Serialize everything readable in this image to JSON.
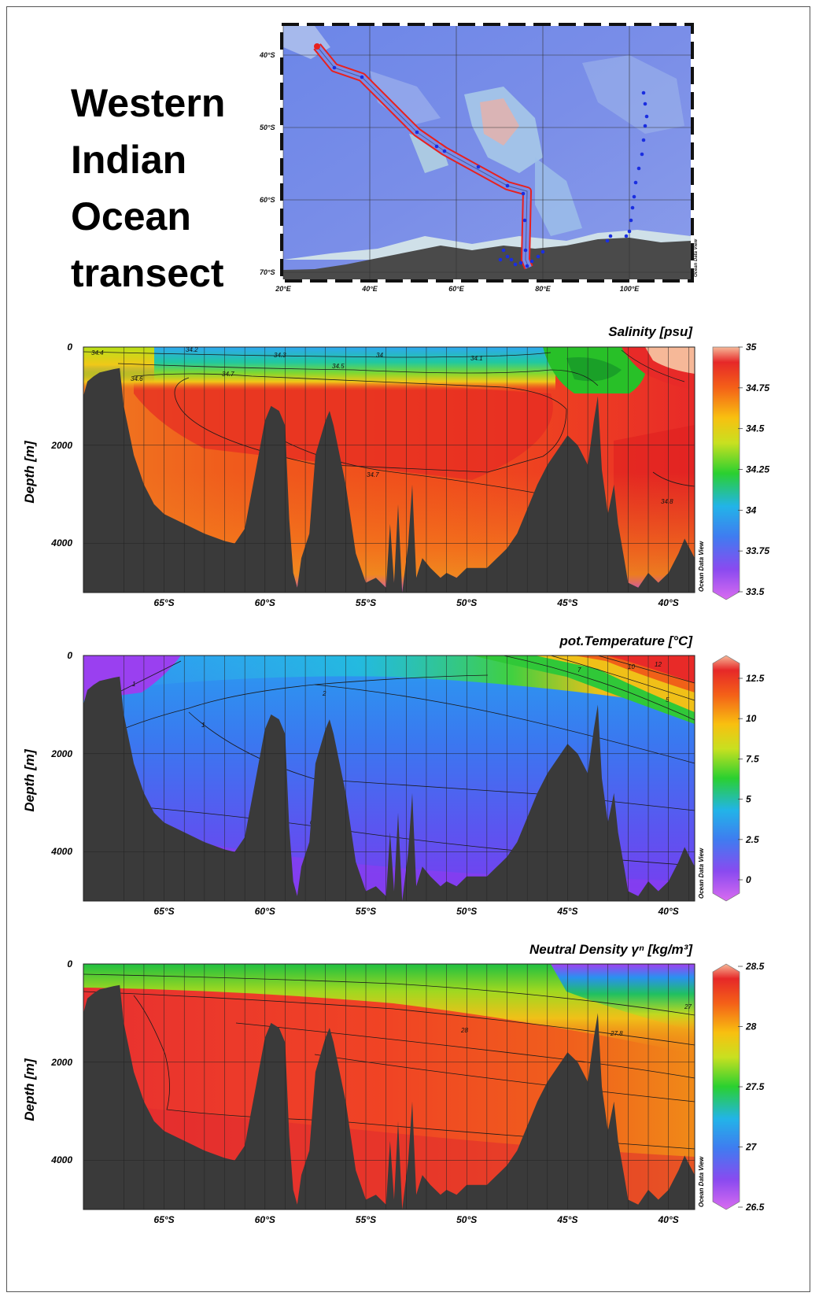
{
  "page_title_lines": [
    "Western",
    "Indian",
    "Ocean",
    "transect"
  ],
  "map": {
    "lat_labels": [
      "40°S",
      "50°S",
      "60°S",
      "70°S"
    ],
    "lon_labels": [
      "20°E",
      "40°E",
      "60°E",
      "80°E",
      "100°E"
    ],
    "watermark": "Ocean Data View",
    "route_color": "#e8201e",
    "station_color": "#1a2ee0"
  },
  "sections": [
    {
      "id": "salinity",
      "title": "Salinity [psu]",
      "colormap": "odv",
      "colorbar_ticks": [
        "35",
        "34.75",
        "34.5",
        "34.25",
        "34",
        "33.75",
        "33.5"
      ],
      "ylabel": "Depth [m]",
      "yticks": [
        "0",
        "2000",
        "4000"
      ],
      "xticks": [
        "65°S",
        "60°S",
        "55°S",
        "50°S",
        "45°S",
        "40°S"
      ],
      "contour_labels": [
        "34.4",
        "34.2",
        "34.3",
        "34",
        "34.1",
        "34.5",
        "34.7",
        "34.6",
        "34.7",
        "34.8"
      ],
      "watermark": "Ocean Data View"
    },
    {
      "id": "temperature",
      "title": "pot.Temperature [°C]",
      "colormap": "odv",
      "colorbar_ticks": [
        "12.5",
        "10",
        "7.5",
        "5",
        "2.5",
        "0"
      ],
      "ylabel": "Depth [m]",
      "yticks": [
        "0",
        "2000",
        "4000"
      ],
      "xticks": [
        "65°S",
        "60°S",
        "55°S",
        "50°S",
        "45°S",
        "40°S"
      ],
      "contour_labels": [
        "1",
        "2",
        "1",
        "0",
        "7",
        "10",
        "12",
        "5"
      ],
      "watermark": "Ocean Data View"
    },
    {
      "id": "density",
      "title": "Neutral Density γⁿ [kg/m³]",
      "colormap": "odv",
      "colorbar_ticks": [
        "28.5",
        "28",
        "27.5",
        "27",
        "26.5"
      ],
      "ylabel": "Depth [m]",
      "yticks": [
        "0",
        "2000",
        "4000"
      ],
      "xticks": [
        "65°S",
        "60°S",
        "55°S",
        "50°S",
        "45°S",
        "40°S"
      ],
      "contour_labels": [
        "28",
        "27.8",
        "27"
      ],
      "watermark": "Ocean Data View"
    }
  ],
  "chart_data": [
    {
      "type": "heatmap",
      "title": "Salinity [psu]",
      "xlabel": "",
      "ylabel": "Depth [m]",
      "x_range_lat": [
        -69,
        -38.7
      ],
      "y_range_depth": [
        0,
        5000
      ],
      "colorbar_range": [
        33.5,
        35
      ],
      "colorbar_ticks": [
        35,
        34.75,
        34.5,
        34.25,
        34,
        33.75,
        33.5
      ]
    },
    {
      "type": "heatmap",
      "title": "pot.Temperature [°C]",
      "xlabel": "",
      "ylabel": "Depth [m]",
      "x_range_lat": [
        -69,
        -38.7
      ],
      "y_range_depth": [
        0,
        5000
      ],
      "colorbar_range": [
        -2,
        13.5
      ],
      "colorbar_ticks": [
        12.5,
        10,
        7.5,
        5,
        2.5,
        0
      ]
    },
    {
      "type": "heatmap",
      "title": "Neutral Density γⁿ [kg/m³]",
      "xlabel": "",
      "ylabel": "Depth [m]",
      "x_range_lat": [
        -69,
        -38.7
      ],
      "y_range_depth": [
        0,
        5000
      ],
      "colorbar_range": [
        26.5,
        28.5
      ],
      "colorbar_ticks": [
        28.5,
        28,
        27.5,
        27,
        26.5
      ]
    }
  ]
}
